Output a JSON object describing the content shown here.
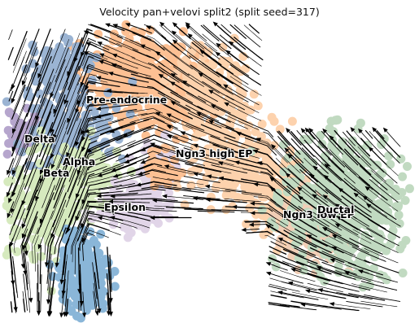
{
  "chart_data": {
    "type": "scatter",
    "subtype": "velocity-stream-embedding",
    "title": "Velocity pan+velovi split2 (split seed=317)",
    "axes_visible": false,
    "grid": false,
    "legend": "on-data labels",
    "clusters": [
      {
        "name": "Pre-endocrine",
        "color": "#fd8d3c"
      },
      {
        "name": "Ngn3 high EP",
        "color": "#fdae6b"
      },
      {
        "name": "Ngn3 low EP",
        "color": "#e6a77c"
      },
      {
        "name": "Ductal",
        "color": "#8fbc8f"
      },
      {
        "name": "Delta",
        "color": "#7b5fa6"
      },
      {
        "name": "Alpha",
        "color": "#4a78b0"
      },
      {
        "name": "Beta",
        "color": "#b5d98a"
      },
      {
        "name": "Epsilon",
        "color": "#c9b4d6"
      }
    ],
    "unlabeled_cluster_color": "#2b7bb9"
  }
}
